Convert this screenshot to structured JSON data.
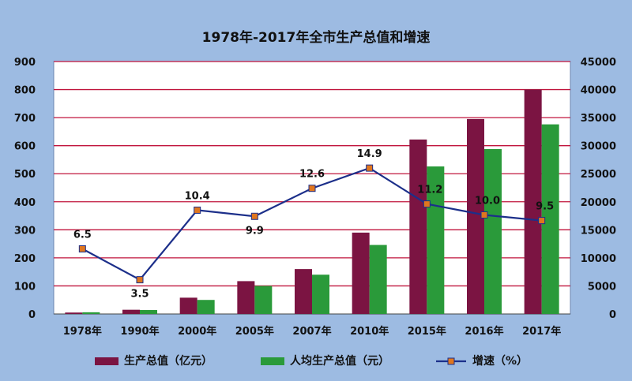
{
  "chart_data": {
    "type": "bar",
    "title": "1978年-2017年全市生产总值和增速",
    "categories": [
      "1978年",
      "1990年",
      "2000年",
      "2005年",
      "2007年",
      "2010年",
      "2015年",
      "2016年",
      "2017年"
    ],
    "series": [
      {
        "name": "生产总值（亿元）",
        "type": "bar",
        "axis": "left",
        "color": "#7b1442",
        "values": [
          5,
          15,
          58,
          117,
          160,
          290,
          622,
          695,
          800
        ]
      },
      {
        "name": "人均生产总值（元）",
        "type": "bar",
        "axis": "right",
        "color": "#2a9a3a",
        "values": [
          300,
          700,
          2500,
          5000,
          7000,
          12300,
          26300,
          29400,
          33800
        ]
      },
      {
        "name": "增速（%）",
        "type": "line",
        "axis": "left",
        "color": "#1c2f8a",
        "marker_color": "#e0761e",
        "labels": [
          "6.5",
          "3.5",
          "10.4",
          "9.9",
          "12.6",
          "14.9",
          "11.2",
          "10.0",
          "9.5"
        ],
        "values": [
          6.5,
          3.5,
          10.4,
          9.9,
          12.6,
          14.9,
          11.2,
          10.0,
          9.5
        ],
        "plotted_left_axis_values": [
          232,
          122,
          370,
          348,
          448,
          520,
          392,
          353,
          333
        ]
      }
    ],
    "y_left": {
      "ylim": [
        0,
        900
      ],
      "ticks": [
        "0",
        "100",
        "200",
        "300",
        "400",
        "500",
        "600",
        "700",
        "800",
        "900"
      ]
    },
    "y_right": {
      "ylim": [
        0,
        45000
      ],
      "ticks": [
        "0",
        "5000",
        "10000",
        "15000",
        "20000",
        "25000",
        "30000",
        "35000",
        "40000",
        "45000"
      ]
    },
    "grid": true,
    "legend": "bottom"
  },
  "colors": {
    "background": "#9dbbe2",
    "plot_background": "#ffffff",
    "gridline": "#c0143c"
  }
}
